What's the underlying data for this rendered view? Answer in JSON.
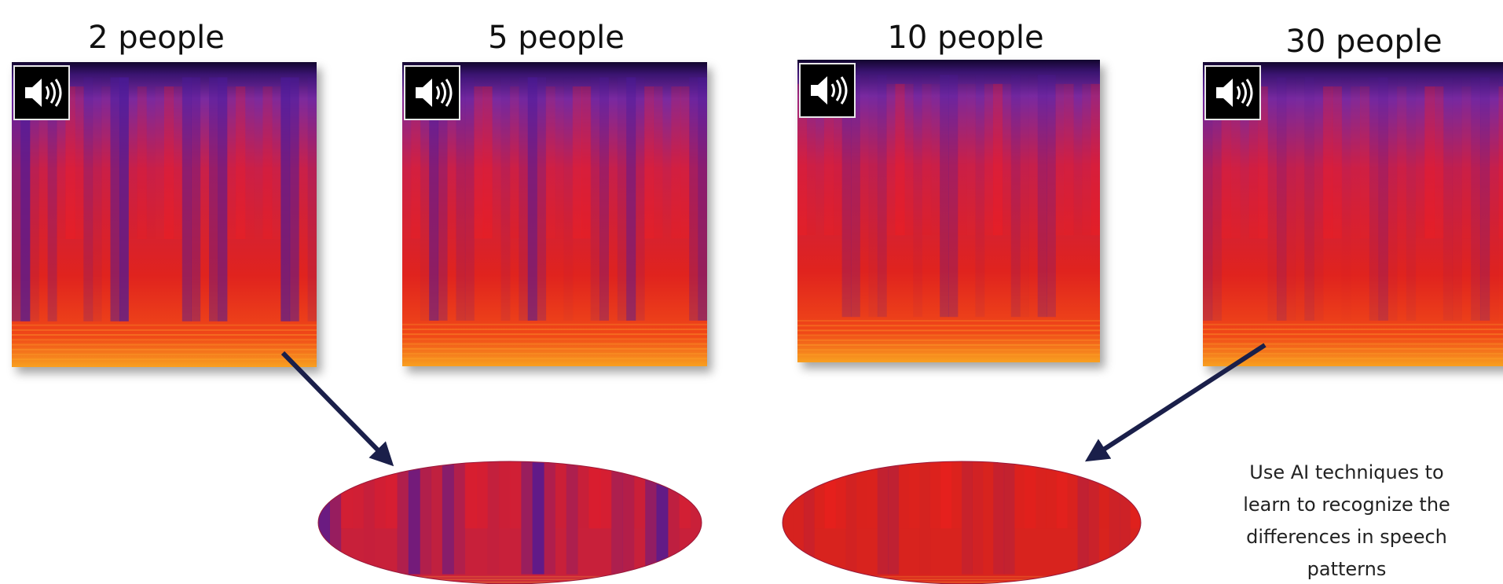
{
  "panels": [
    {
      "label": "2 people"
    },
    {
      "label": "5 people"
    },
    {
      "label": "10 people"
    },
    {
      "label": "30 people"
    }
  ],
  "note": {
    "lines": [
      "Use AI techniques to",
      "learn to recognize the",
      "differences in speech",
      "patterns"
    ]
  }
}
